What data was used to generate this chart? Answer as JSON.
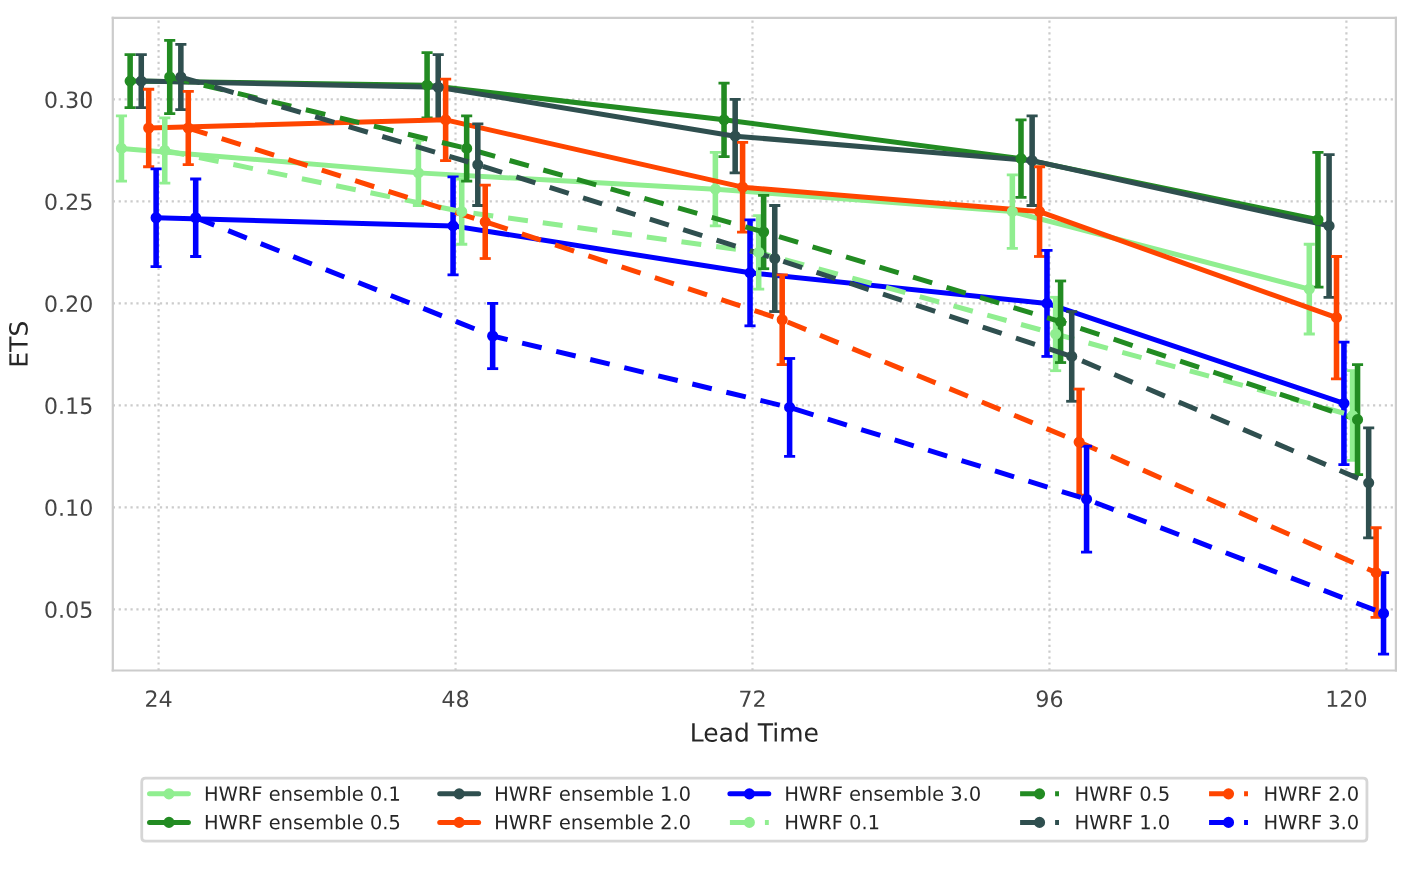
{
  "chart_data": {
    "type": "line",
    "xlabel": "Lead Time",
    "ylabel": "ETS",
    "xlim": [
      20.3,
      124
    ],
    "ylim": [
      0.02,
      0.34
    ],
    "xticks": [
      24,
      48,
      72,
      96,
      120
    ],
    "yticks": [
      0.05,
      {
        "value": 0.1,
        "label": "0.10"
      },
      0.15,
      {
        "value": 0.2,
        "label": "0.20"
      },
      0.25,
      {
        "value": 0.3,
        "label": "0.30"
      }
    ],
    "grid": true,
    "legend": "bottom",
    "marker": "circle",
    "series": [
      {
        "name": "HWRF ensemble 0.1",
        "color": "#90ee90",
        "line_style": "solid",
        "x": [
          21,
          45,
          69,
          93,
          117
        ],
        "values": [
          0.276,
          0.264,
          0.256,
          0.245,
          0.207
        ],
        "errors": [
          0.016,
          0.016,
          0.018,
          0.018,
          0.022
        ]
      },
      {
        "name": "HWRF ensemble 0.5",
        "color": "#228b22",
        "line_style": "solid",
        "x": [
          21.7,
          45.7,
          69.7,
          93.7,
          117.7
        ],
        "values": [
          0.309,
          0.307,
          0.29,
          0.271,
          0.241
        ],
        "errors": [
          0.013,
          0.016,
          0.018,
          0.019,
          0.033
        ]
      },
      {
        "name": "HWRF ensemble 1.0",
        "color": "#2f4f4f",
        "line_style": "solid",
        "x": [
          22.6,
          46.6,
          70.6,
          94.6,
          118.6
        ],
        "values": [
          0.309,
          0.306,
          0.282,
          0.27,
          0.238
        ],
        "errors": [
          0.013,
          0.016,
          0.018,
          0.022,
          0.035
        ]
      },
      {
        "name": "HWRF ensemble 2.0",
        "color": "#ff4500",
        "line_style": "solid",
        "x": [
          23.2,
          47.2,
          71.2,
          95.2,
          119.2
        ],
        "values": [
          0.286,
          0.29,
          0.257,
          0.245,
          0.193
        ],
        "errors": [
          0.019,
          0.02,
          0.022,
          0.022,
          0.03
        ]
      },
      {
        "name": "HWRF ensemble 3.0",
        "color": "#0000ff",
        "line_style": "solid",
        "x": [
          23.8,
          47.8,
          71.8,
          95.8,
          119.8
        ],
        "values": [
          0.242,
          0.238,
          0.215,
          0.2,
          0.151
        ],
        "errors": [
          0.024,
          0.024,
          0.026,
          0.026,
          0.03
        ]
      },
      {
        "name": "HWRF 0.1",
        "color": "#90ee90",
        "line_style": "dashed",
        "x": [
          24.5,
          48.5,
          72.5,
          96.5,
          120.5
        ],
        "values": [
          0.275,
          0.245,
          0.225,
          0.185,
          0.145
        ],
        "errors": [
          0.016,
          0.016,
          0.018,
          0.018,
          0.022
        ]
      },
      {
        "name": "HWRF 0.5",
        "color": "#228b22",
        "line_style": "dashed",
        "x": [
          24.9,
          48.9,
          72.9,
          96.9,
          120.9
        ],
        "values": [
          0.311,
          0.276,
          0.235,
          0.191,
          0.143
        ],
        "errors": [
          0.018,
          0.016,
          0.018,
          0.02,
          0.027
        ]
      },
      {
        "name": "HWRF 1.0",
        "color": "#2f4f4f",
        "line_style": "dashed",
        "x": [
          25.8,
          49.8,
          73.8,
          97.8,
          121.8
        ],
        "values": [
          0.311,
          0.268,
          0.222,
          0.174,
          0.112
        ],
        "errors": [
          0.016,
          0.02,
          0.026,
          0.022,
          0.027
        ]
      },
      {
        "name": "HWRF 2.0",
        "color": "#ff4500",
        "line_style": "dashed",
        "x": [
          26.4,
          50.4,
          74.4,
          98.4,
          122.4
        ],
        "values": [
          0.286,
          0.24,
          0.192,
          0.132,
          0.068
        ],
        "errors": [
          0.018,
          0.018,
          0.022,
          0.026,
          0.022
        ]
      },
      {
        "name": "HWRF 3.0",
        "color": "#0000ff",
        "line_style": "dashed",
        "x": [
          27,
          51,
          75,
          99,
          123
        ],
        "values": [
          0.242,
          0.184,
          0.149,
          0.104,
          0.048
        ],
        "errors": [
          0.019,
          0.016,
          0.024,
          0.026,
          0.02
        ]
      }
    ]
  }
}
